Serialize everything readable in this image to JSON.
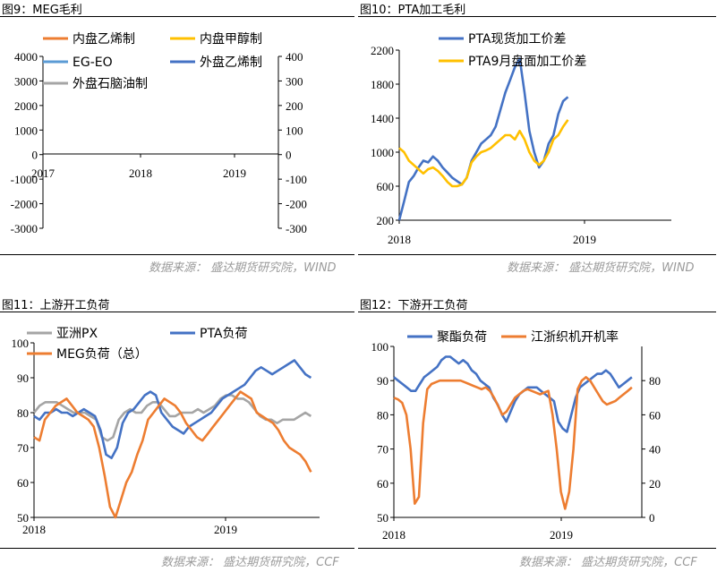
{
  "panels": [
    {
      "title": "图9：MEG毛利",
      "source": "数据来源： 盛达期货研究院，WIND"
    },
    {
      "title": "图10：PTA加工毛利",
      "source": "数据来源： 盛达期货研究院，WIND"
    },
    {
      "title": "图11：上游开工负荷",
      "source": "数据来源： 盛达期货研究院，CCF"
    },
    {
      "title": "图12：下游开工负荷",
      "source": "数据来源： 盛达期货研究院，CCF"
    }
  ],
  "chart_data": [
    {
      "type": "line",
      "x_labels": [
        "2017",
        "2018",
        "2019"
      ],
      "y_ticks": [
        "4000",
        "3000",
        "2000",
        "1000",
        "0",
        "-1000",
        "-2000",
        "-3000"
      ],
      "y2_ticks": [
        "400",
        "300",
        "200",
        "100",
        "0",
        "-100",
        "-200",
        "-300"
      ],
      "ylim": [
        -3000,
        4000
      ],
      "y2lim": [
        -300,
        400
      ],
      "legend_position": "top",
      "series": [
        {
          "name": "内盘乙烯制",
          "color": "#ED7D31",
          "values": []
        },
        {
          "name": "内盘甲醇制",
          "color": "#FFC000",
          "values": []
        },
        {
          "name": "EG-EO",
          "color": "#5B9BD5",
          "values": []
        },
        {
          "name": "外盘乙烯制",
          "color": "#4472C4",
          "values": []
        },
        {
          "name": "外盘石脑油制",
          "color": "#A5A5A5",
          "values": []
        }
      ]
    },
    {
      "type": "line",
      "x_labels": [
        "2018",
        "2019"
      ],
      "y_ticks": [
        "2200",
        "1800",
        "1400",
        "1000",
        "600",
        "200"
      ],
      "ylim": [
        200,
        2200
      ],
      "legend_position": "top-left",
      "series": [
        {
          "name": "PTA现货加工价差",
          "color": "#4472C4",
          "values": [
            200,
            420,
            650,
            720,
            820,
            900,
            880,
            950,
            900,
            820,
            760,
            700,
            660,
            620,
            700,
            900,
            1000,
            1100,
            1150,
            1200,
            1300,
            1500,
            1700,
            1850,
            2000,
            2100,
            1700,
            1250,
            1000,
            820,
            900,
            1100,
            1200,
            1450,
            1600,
            1650
          ]
        },
        {
          "name": "PTA9月盘面加工价差",
          "color": "#FFC000",
          "values": [
            1050,
            1000,
            900,
            850,
            800,
            750,
            800,
            820,
            780,
            720,
            650,
            600,
            600,
            620,
            700,
            880,
            950,
            1000,
            1020,
            1050,
            1100,
            1150,
            1200,
            1200,
            1150,
            1250,
            1150,
            1000,
            900,
            850,
            900,
            1000,
            1150,
            1200,
            1300,
            1380
          ]
        }
      ]
    },
    {
      "type": "line",
      "x_labels": [
        "2018",
        "2019"
      ],
      "y_ticks": [
        "100",
        "90",
        "80",
        "70",
        "60",
        "50"
      ],
      "ylim": [
        50,
        100
      ],
      "legend_position": "top",
      "series": [
        {
          "name": "亚洲PX",
          "color": "#A5A5A5",
          "values": [
            80,
            82,
            83,
            83,
            83,
            82,
            81,
            80,
            80,
            80,
            79,
            78,
            73,
            72,
            73,
            78,
            80,
            81,
            80,
            80,
            82,
            83,
            83,
            81,
            79,
            79,
            80,
            80,
            80,
            81,
            80,
            81,
            82,
            84,
            85,
            85,
            84,
            84,
            83,
            81,
            79,
            78,
            78,
            77,
            78,
            78,
            78,
            79,
            80,
            79
          ]
        },
        {
          "name": "PTA负荷",
          "color": "#4472C4",
          "values": [
            79,
            78,
            80,
            80,
            81,
            80,
            80,
            79,
            80,
            81,
            80,
            79,
            75,
            68,
            67,
            70,
            77,
            80,
            81,
            83,
            85,
            86,
            85,
            80,
            78,
            76,
            75,
            74,
            76,
            77,
            78,
            79,
            80,
            82,
            84,
            85,
            86,
            87,
            88,
            90,
            92,
            93,
            92,
            91,
            92,
            93,
            94,
            95,
            93,
            91,
            90
          ]
        },
        {
          "name": "MEG负荷（总）",
          "color": "#ED7D31",
          "values": [
            73,
            72,
            78,
            80,
            82,
            83,
            84,
            82,
            80,
            79,
            78,
            76,
            70,
            62,
            53,
            50,
            55,
            60,
            63,
            68,
            72,
            78,
            80,
            82,
            84,
            83,
            82,
            80,
            77,
            75,
            73,
            72,
            74,
            76,
            78,
            80,
            82,
            84,
            86,
            85,
            84,
            80,
            79,
            78,
            77,
            75,
            72,
            70,
            69,
            68,
            66,
            63
          ]
        }
      ]
    },
    {
      "type": "line",
      "x_labels": [
        "2018",
        "2019"
      ],
      "y_ticks": [
        "100",
        "90",
        "80",
        "70",
        "60",
        "50"
      ],
      "y2_ticks": [
        "80",
        "60",
        "40",
        "20",
        "0"
      ],
      "ylim": [
        50,
        100
      ],
      "y2lim": [
        0,
        100
      ],
      "legend_position": "top",
      "series": [
        {
          "name": "聚酯负荷",
          "color": "#4472C4",
          "values": [
            91,
            90,
            89,
            88,
            87,
            87,
            89,
            91,
            92,
            93,
            94,
            96,
            97,
            97,
            96,
            95,
            96,
            95,
            93,
            92,
            90,
            89,
            88,
            85,
            83,
            80,
            78,
            81,
            84,
            86,
            87,
            88,
            88,
            88,
            87,
            86,
            85,
            84,
            78,
            76,
            75,
            80,
            85,
            88,
            89,
            90,
            91,
            92,
            92,
            93,
            92,
            90,
            88,
            89,
            90,
            91
          ]
        },
        {
          "name": "江浙织机开机率",
          "color": "#ED7D31",
          "values": [
            70,
            69,
            67,
            60,
            40,
            8,
            12,
            55,
            75,
            78,
            79,
            80,
            80,
            80,
            80,
            80,
            80,
            79,
            78,
            77,
            76,
            75,
            76,
            74,
            70,
            65,
            60,
            62,
            66,
            70,
            72,
            74,
            75,
            74,
            73,
            72,
            73,
            74,
            60,
            40,
            15,
            5,
            15,
            40,
            75,
            80,
            82,
            80,
            76,
            72,
            68,
            66,
            67,
            68,
            70,
            72,
            74,
            76
          ]
        }
      ]
    }
  ]
}
